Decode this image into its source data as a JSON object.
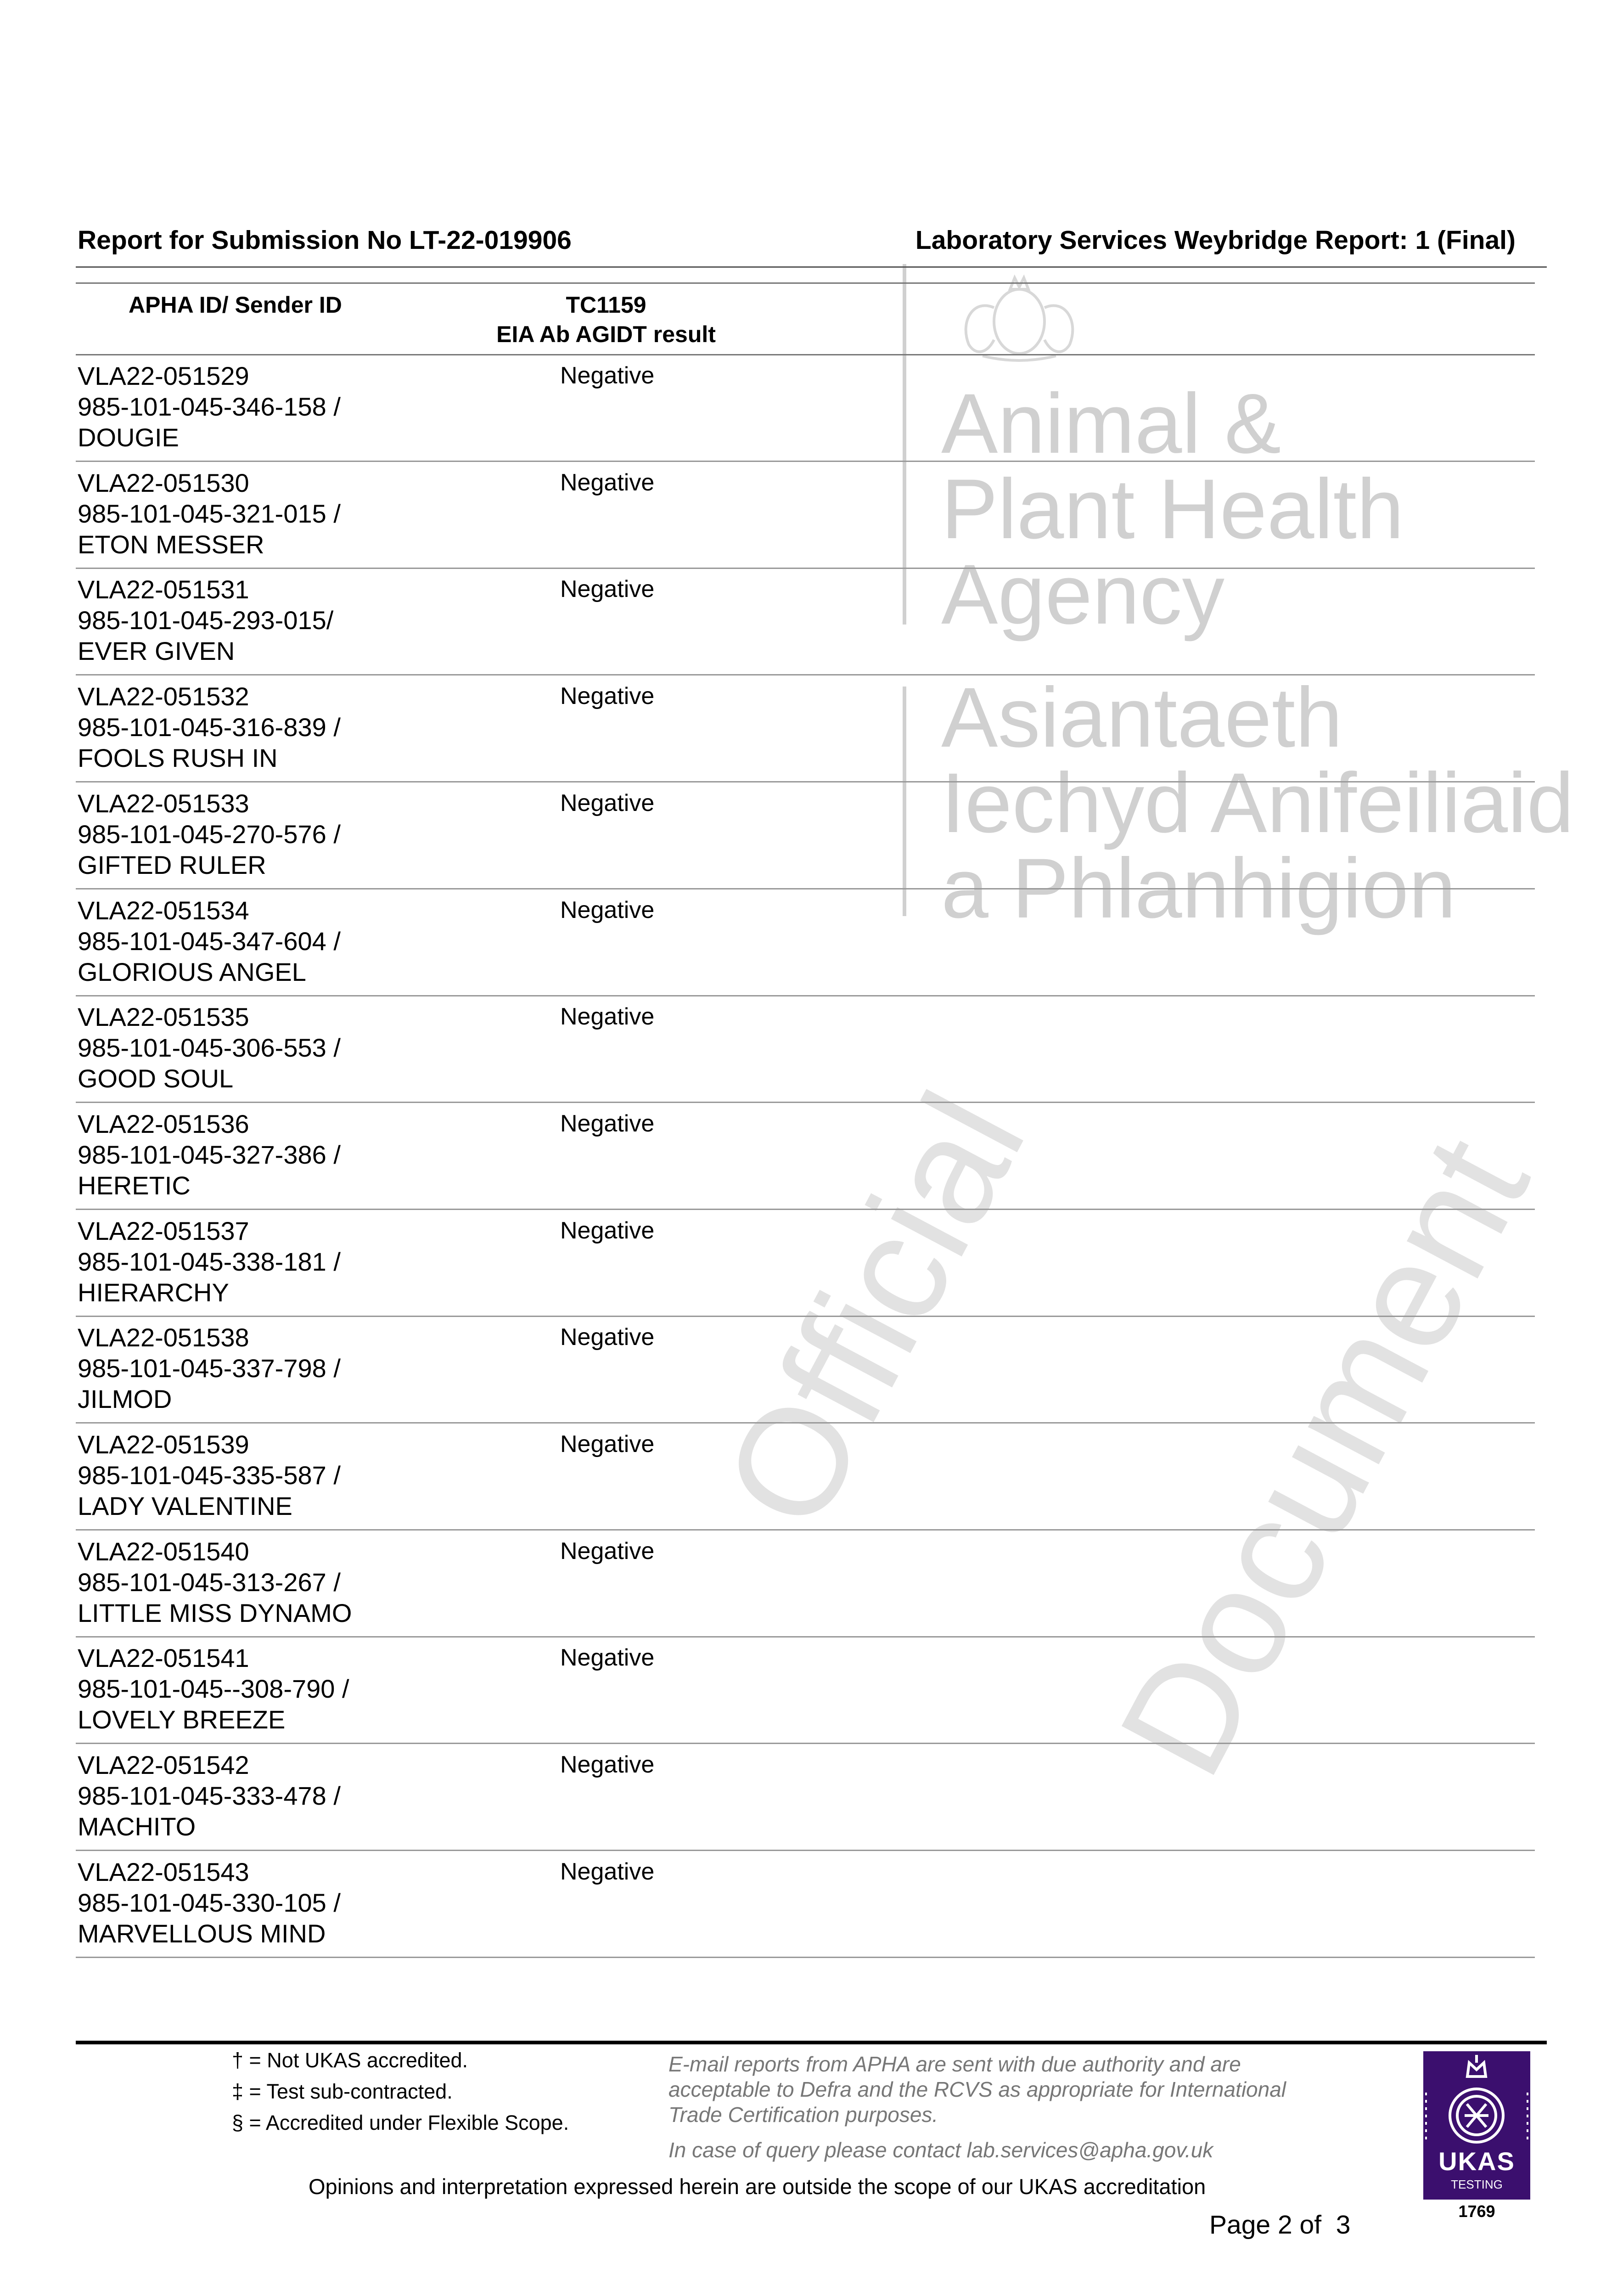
{
  "header": {
    "left": "Report for Submission No LT-22-019906",
    "right": "Laboratory Services Weybridge Report: 1 (Final)"
  },
  "table": {
    "col1_header": "APHA ID/ Sender ID",
    "col2_header_line1": "TC1159",
    "col2_header_line2": "EIA Ab AGIDT result",
    "rows": [
      {
        "apha_id": "VLA22-051529",
        "sender_id": "985-101-045-346-158 /",
        "name": "DOUGIE",
        "result": "Negative"
      },
      {
        "apha_id": "VLA22-051530",
        "sender_id": "985-101-045-321-015 /",
        "name": "ETON MESSER",
        "result": "Negative"
      },
      {
        "apha_id": "VLA22-051531",
        "sender_id": "985-101-045-293-015/",
        "name": "EVER GIVEN",
        "result": "Negative"
      },
      {
        "apha_id": "VLA22-051532",
        "sender_id": "985-101-045-316-839 /",
        "name": "FOOLS RUSH IN",
        "result": "Negative"
      },
      {
        "apha_id": "VLA22-051533",
        "sender_id": "985-101-045-270-576 /",
        "name": "GIFTED RULER",
        "result": "Negative"
      },
      {
        "apha_id": "VLA22-051534",
        "sender_id": "985-101-045-347-604 /",
        "name": "GLORIOUS ANGEL",
        "result": "Negative"
      },
      {
        "apha_id": "VLA22-051535",
        "sender_id": "985-101-045-306-553 /",
        "name": "GOOD SOUL",
        "result": "Negative"
      },
      {
        "apha_id": "VLA22-051536",
        "sender_id": "985-101-045-327-386 /",
        "name": "HERETIC",
        "result": "Negative"
      },
      {
        "apha_id": "VLA22-051537",
        "sender_id": "985-101-045-338-181 /",
        "name": "HIERARCHY",
        "result": "Negative"
      },
      {
        "apha_id": "VLA22-051538",
        "sender_id": "985-101-045-337-798 /",
        "name": "JILMOD",
        "result": "Negative"
      },
      {
        "apha_id": "VLA22-051539",
        "sender_id": "985-101-045-335-587 /",
        "name": "LADY VALENTINE",
        "result": "Negative"
      },
      {
        "apha_id": "VLA22-051540",
        "sender_id": "985-101-045-313-267 /",
        "name": "LITTLE MISS DYNAMO",
        "result": "Negative"
      },
      {
        "apha_id": "VLA22-051541",
        "sender_id": "985-101-045--308-790 /",
        "name": "LOVELY BREEZE",
        "result": "Negative"
      },
      {
        "apha_id": "VLA22-051542",
        "sender_id": "985-101-045-333-478 /",
        "name": "MACHITO",
        "result": "Negative"
      },
      {
        "apha_id": "VLA22-051543",
        "sender_id": "985-101-045-330-105 /",
        "name": "MARVELLOUS MIND",
        "result": "Negative"
      }
    ]
  },
  "watermark": {
    "english": [
      "Animal &",
      "Plant Health",
      "Agency"
    ],
    "welsh": [
      "Asiantaeth",
      "Iechyd Anifeiliaid",
      "a Phlanhigion"
    ],
    "diagonal1": "Official",
    "diagonal2": "Document"
  },
  "footer": {
    "footnotes": [
      "† = Not UKAS accredited.",
      "‡ = Test sub-contracted.",
      "§ = Accredited under Flexible Scope."
    ],
    "disclaimer": [
      "E-mail reports from APHA are sent with due authority and are",
      "acceptable to Defra and the RCVS as appropriate for International",
      "Trade Certification purposes."
    ],
    "contact": "In case of query please contact lab.services@apha.gov.uk",
    "opinions": "Opinions and interpretation expressed herein are outside the scope of our UKAS accreditation",
    "page": "Page 2 of  3",
    "ukas": {
      "brand": "UKAS",
      "sub": "TESTING",
      "number": "1769",
      "color": "#3b0f6e"
    }
  }
}
